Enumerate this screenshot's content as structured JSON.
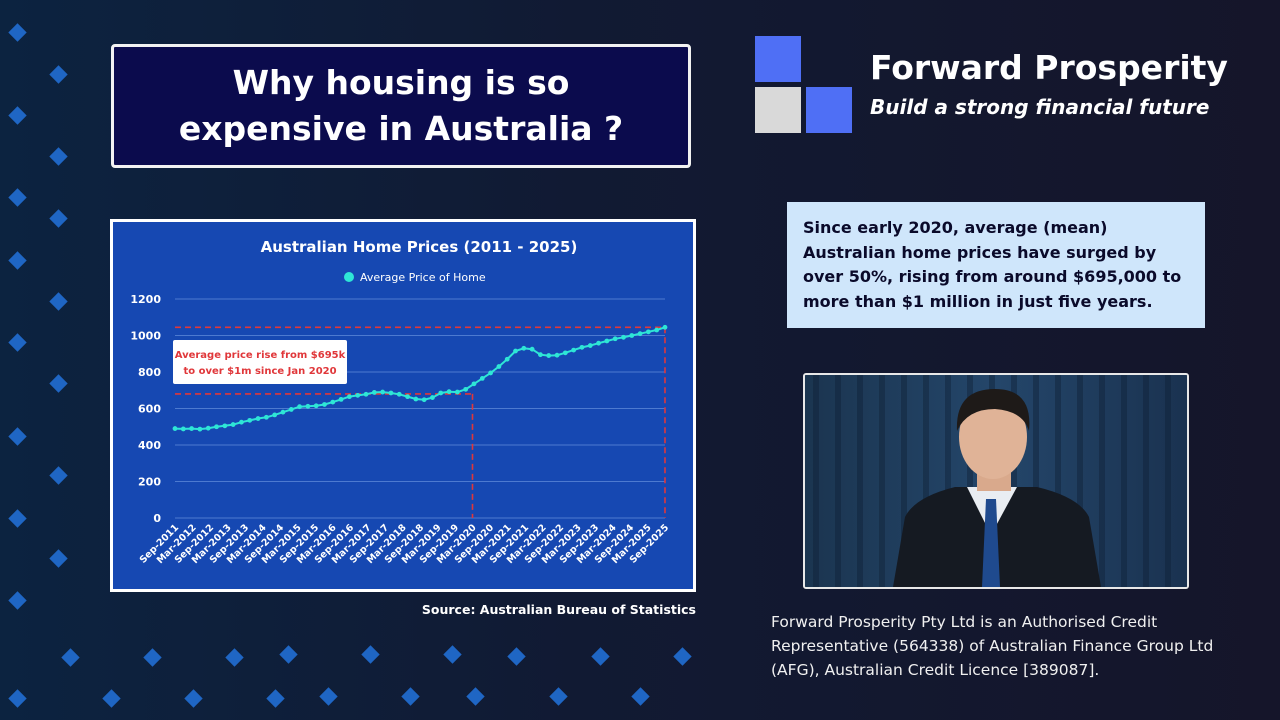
{
  "title": "Why housing is so expensive in Australia ?",
  "brand": {
    "name": "Forward Prosperity",
    "tagline": "Build a strong financial future",
    "colors": {
      "accent": "#4f6ff5",
      "light": "#d9d9d9"
    }
  },
  "info_text": "Since early 2020, average (mean) Australian home prices have surged by over 50%, rising from around $695,000 to more than $1 million in just five years.",
  "source": "Source: Australian Bureau of Statistics",
  "disclaimer": "Forward Prosperity Pty Ltd is an Authorised Credit Representative (564338) of Australian Finance Group Ltd (AFG), Australian Credit Licence [389087].",
  "chart_data": {
    "type": "line",
    "title": "Australian Home Prices (2011 - 2025)",
    "legend": "Average Price of Home",
    "legend_position": "top",
    "grid": true,
    "ylim": [
      0,
      1200
    ],
    "yticks": [
      "0",
      "200",
      "400",
      "600",
      "800",
      "1000",
      "1200"
    ],
    "xtick_labels": [
      "Sep-2011",
      "Mar-2012",
      "Sep-2012",
      "Mar-2013",
      "Sep-2013",
      "Mar-2014",
      "Sep-2014",
      "Mar-2015",
      "Sep-2015",
      "Mar-2016",
      "Sep-2016",
      "Mar-2017",
      "Sep-2017",
      "Mar-2018",
      "Sep-2018",
      "Mar-2019",
      "Sep-2019",
      "Mar-2020",
      "Sep-2020",
      "Mar-2021",
      "Sep-2021",
      "Mar-2022",
      "Sep-2022",
      "Mar-2023",
      "Sep-2023",
      "Mar-2024",
      "Sep-2024",
      "Mar-2025",
      "Sep-2025"
    ],
    "series": [
      {
        "name": "Average Price of Home",
        "color": "#2ee6d6",
        "values": [
          490,
          488,
          490,
          487,
          492,
          500,
          505,
          512,
          525,
          535,
          545,
          552,
          565,
          580,
          595,
          610,
          612,
          615,
          622,
          635,
          650,
          665,
          672,
          678,
          688,
          690,
          685,
          678,
          665,
          652,
          648,
          660,
          685,
          692,
          690,
          705,
          735,
          765,
          795,
          830,
          870,
          915,
          930,
          925,
          895,
          890,
          892,
          905,
          920,
          935,
          945,
          958,
          970,
          982,
          990,
          1000,
          1010,
          1020,
          1030,
          1045
        ]
      }
    ],
    "annotation": {
      "text_line1": "Average price rise from $695k",
      "text_line2": "to over $1m since Jan 2020",
      "color": "#e0373a"
    },
    "reference_lines": {
      "y": [
        680,
        1045
      ],
      "x": [
        "Mar-2020",
        "Sep-2025"
      ]
    }
  }
}
